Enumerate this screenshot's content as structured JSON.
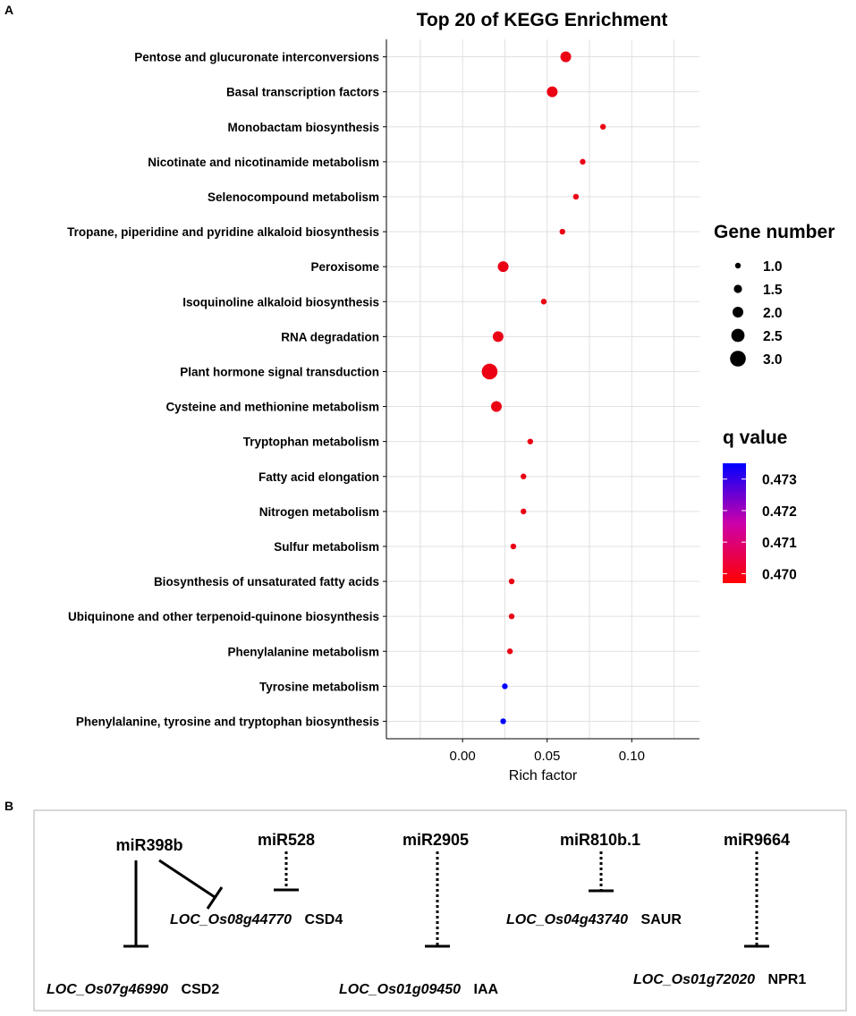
{
  "panels": {
    "a": "A",
    "b": "B"
  },
  "chart_data": {
    "type": "scatter",
    "title": "Top 20 of KEGG Enrichment",
    "xlabel": "Rich factor",
    "ylabel": "",
    "xlim": [
      -0.045,
      0.14
    ],
    "x_ticks": [
      0.0,
      0.05,
      0.1
    ],
    "x_tick_labels": [
      "0.00",
      "0.05",
      "0.10"
    ],
    "grid": true,
    "categories": [
      "Pentose and glucuronate interconversions",
      "Basal transcription factors",
      "Monobactam biosynthesis",
      "Nicotinate and nicotinamide metabolism",
      "Selenocompound metabolism",
      "Tropane, piperidine and pyridine alkaloid biosynthesis",
      "Peroxisome",
      "Isoquinoline alkaloid biosynthesis",
      "RNA degradation",
      "Plant hormone signal transduction",
      "Cysteine and methionine metabolism",
      "Tryptophan metabolism",
      "Fatty acid elongation",
      "Nitrogen metabolism",
      "Sulfur metabolism",
      "Biosynthesis of unsaturated fatty acids",
      "Ubiquinone and other terpenoid-quinone biosynthesis",
      "Phenylalanine metabolism",
      "Tyrosine metabolism",
      "Phenylalanine, tyrosine and tryptophan biosynthesis"
    ],
    "rich_factor": [
      0.061,
      0.053,
      0.083,
      0.071,
      0.067,
      0.059,
      0.024,
      0.048,
      0.021,
      0.016,
      0.02,
      0.04,
      0.036,
      0.036,
      0.03,
      0.029,
      0.029,
      0.028,
      0.025,
      0.024
    ],
    "gene_number": [
      2,
      2,
      1,
      1,
      1,
      1,
      2,
      1,
      2,
      3,
      2,
      1,
      1,
      1,
      1,
      1,
      1,
      1,
      1,
      1
    ],
    "q_value": [
      0.47,
      0.47,
      0.47,
      0.47,
      0.47,
      0.47,
      0.47,
      0.47,
      0.47,
      0.47,
      0.47,
      0.47,
      0.47,
      0.47,
      0.47,
      0.47,
      0.47,
      0.47,
      0.4735,
      0.4735
    ],
    "size_legend": {
      "title": "Gene number",
      "values": [
        1.0,
        1.5,
        2.0,
        2.5,
        3.0
      ],
      "labels": [
        "1.0",
        "1.5",
        "2.0",
        "2.5",
        "3.0"
      ]
    },
    "color_legend": {
      "title": "q value",
      "range": [
        0.4697,
        0.4735
      ],
      "ticks": [
        0.473,
        0.472,
        0.471,
        0.47
      ],
      "labels": [
        "0.473",
        "0.472",
        "0.471",
        "0.470"
      ],
      "low_color": "#ff0000",
      "high_color": "#0000ff"
    }
  },
  "network": {
    "mirnas": [
      {
        "name": "miR398b"
      },
      {
        "name": "miR528"
      },
      {
        "name": "miR2905"
      },
      {
        "name": "miR810b.1"
      },
      {
        "name": "miR9664"
      }
    ],
    "targets": [
      {
        "locus": "LOC_Os07g46990",
        "gene": "CSD2"
      },
      {
        "locus": "LOC_Os08g44770",
        "gene": "CSD4"
      },
      {
        "locus": "LOC_Os01g09450",
        "gene": "IAA"
      },
      {
        "locus": "LOC_Os04g43740",
        "gene": "SAUR"
      },
      {
        "locus": "LOC_Os01g72020",
        "gene": "NPR1"
      }
    ]
  },
  "colors": {
    "grid": "#e0e0e0",
    "axis": "#000000",
    "panel_border": "#cccccc"
  }
}
